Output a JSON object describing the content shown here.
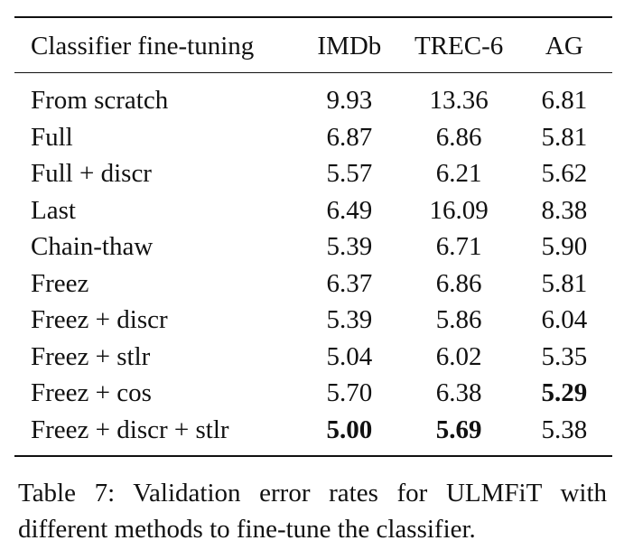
{
  "table": {
    "headers": [
      "Classifier fine-tuning",
      "IMDb",
      "TREC-6",
      "AG"
    ],
    "rows": [
      {
        "method": "From scratch",
        "imdb": "9.93",
        "trec6": "13.36",
        "ag": "6.81"
      },
      {
        "method": "Full",
        "imdb": "6.87",
        "trec6": "6.86",
        "ag": "5.81"
      },
      {
        "method": "Full + discr",
        "imdb": "5.57",
        "trec6": "6.21",
        "ag": "5.62"
      },
      {
        "method": "Last",
        "imdb": "6.49",
        "trec6": "16.09",
        "ag": "8.38"
      },
      {
        "method": "Chain-thaw",
        "imdb": "5.39",
        "trec6": "6.71",
        "ag": "5.90"
      },
      {
        "method": "Freez",
        "imdb": "6.37",
        "trec6": "6.86",
        "ag": "5.81"
      },
      {
        "method": "Freez + discr",
        "imdb": "5.39",
        "trec6": "5.86",
        "ag": "6.04"
      },
      {
        "method": "Freez + stlr",
        "imdb": "5.04",
        "trec6": "6.02",
        "ag": "5.35"
      },
      {
        "method": "Freez + cos",
        "imdb": "5.70",
        "trec6": "6.38",
        "ag": "5.29"
      },
      {
        "method": "Freez + discr + stlr",
        "imdb": "5.00",
        "trec6": "5.69",
        "ag": "5.38"
      }
    ],
    "bold_cells": [
      "8.ag",
      "9.imdb",
      "9.trec6"
    ]
  },
  "caption": {
    "line1": "Table 7: Validation error rates for ULMFiT with",
    "line2": "different methods to fine-tune the classifier."
  }
}
